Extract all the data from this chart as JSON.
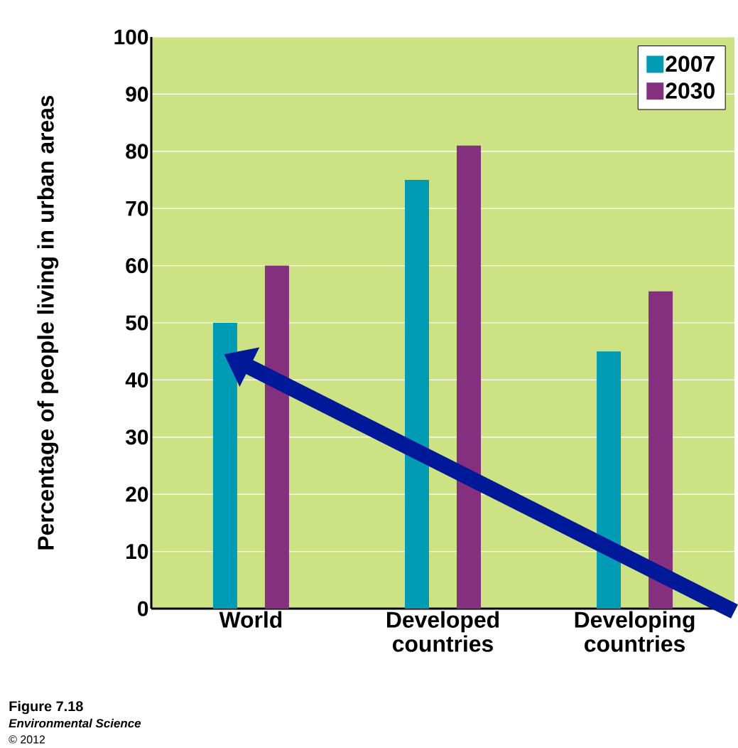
{
  "chart_data": {
    "type": "bar",
    "ylabel": "Percentage of people living in urban areas",
    "categories": [
      "World",
      "Developed countries",
      "Developing countries"
    ],
    "series": [
      {
        "name": "2007",
        "color": "#009bb4",
        "values": [
          50,
          75,
          45
        ]
      },
      {
        "name": "2030",
        "color": "#84307f",
        "values": [
          60,
          81,
          55.5
        ]
      }
    ],
    "ylim": [
      0,
      100
    ],
    "yticks": [
      0,
      10,
      20,
      30,
      40,
      50,
      60,
      70,
      80,
      90,
      100
    ],
    "grid": "y",
    "legend": "top right",
    "annotations": [
      "Figure 7.18",
      "Environmental Science",
      "© 2012"
    ]
  }
}
